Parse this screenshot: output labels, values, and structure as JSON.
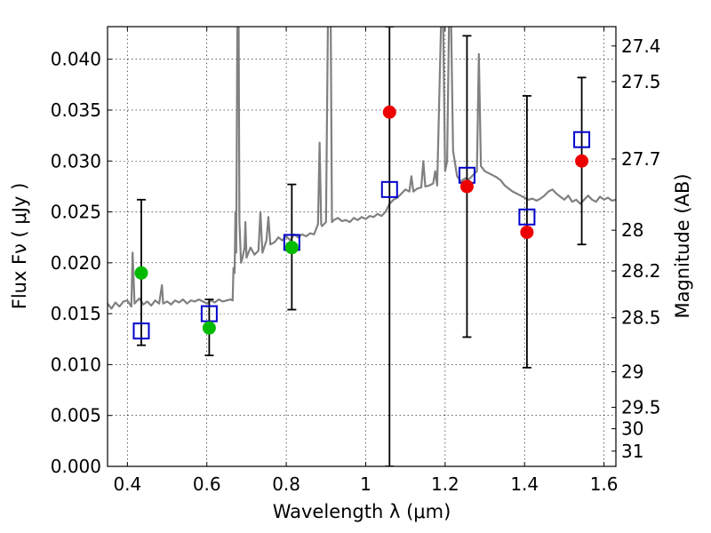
{
  "chart_data": {
    "type": "scatter",
    "xlabel": "Wavelength  λ (μm)",
    "ylabel": "Flux  Fν  ( μJy )",
    "ylabel_right": "Magnitude (AB)",
    "xlim": [
      0.35,
      1.63
    ],
    "ylim": [
      0.0,
      0.0432
    ],
    "grid": true,
    "x_ticks": [
      {
        "value": 0.4,
        "label": "0.4"
      },
      {
        "value": 0.6,
        "label": "0.6"
      },
      {
        "value": 0.8,
        "label": "0.8"
      },
      {
        "value": 1.0,
        "label": "1"
      },
      {
        "value": 1.2,
        "label": "1.2"
      },
      {
        "value": 1.4,
        "label": "1.4"
      },
      {
        "value": 1.6,
        "label": "1.6"
      }
    ],
    "y_ticks": [
      {
        "value": 0.0,
        "label": "0.000"
      },
      {
        "value": 0.005,
        "label": "0.005"
      },
      {
        "value": 0.01,
        "label": "0.010"
      },
      {
        "value": 0.015,
        "label": "0.015"
      },
      {
        "value": 0.02,
        "label": "0.020"
      },
      {
        "value": 0.025,
        "label": "0.025"
      },
      {
        "value": 0.03,
        "label": "0.030"
      },
      {
        "value": 0.035,
        "label": "0.035"
      },
      {
        "value": 0.04,
        "label": "0.040"
      }
    ],
    "y2_ticks": [
      {
        "flux": 0.0413,
        "label": "27.4"
      },
      {
        "flux": 0.0378,
        "label": "27.5"
      },
      {
        "flux": 0.0302,
        "label": "27.7"
      },
      {
        "flux": 0.0232,
        "label": "28"
      },
      {
        "flux": 0.0192,
        "label": "28.2"
      },
      {
        "flux": 0.0146,
        "label": "28.5"
      },
      {
        "flux": 0.0093,
        "label": "29"
      },
      {
        "flux": 0.0058,
        "label": "29.5"
      },
      {
        "flux": 0.0037,
        "label": "30"
      },
      {
        "flux": 0.0015,
        "label": "31"
      }
    ],
    "model_spectrum": {
      "color": "#808080",
      "points": [
        [
          0.35,
          0.016
        ],
        [
          0.36,
          0.0155
        ],
        [
          0.37,
          0.0161
        ],
        [
          0.38,
          0.0157
        ],
        [
          0.39,
          0.0162
        ],
        [
          0.4,
          0.0163
        ],
        [
          0.41,
          0.0157
        ],
        [
          0.413,
          0.021
        ],
        [
          0.418,
          0.016
        ],
        [
          0.43,
          0.0165
        ],
        [
          0.44,
          0.0159
        ],
        [
          0.45,
          0.0162
        ],
        [
          0.46,
          0.0158
        ],
        [
          0.47,
          0.0163
        ],
        [
          0.48,
          0.016
        ],
        [
          0.487,
          0.0178
        ],
        [
          0.49,
          0.016
        ],
        [
          0.5,
          0.0162
        ],
        [
          0.51,
          0.0159
        ],
        [
          0.52,
          0.0163
        ],
        [
          0.53,
          0.0161
        ],
        [
          0.54,
          0.0164
        ],
        [
          0.55,
          0.016
        ],
        [
          0.56,
          0.0163
        ],
        [
          0.57,
          0.0162
        ],
        [
          0.58,
          0.0164
        ],
        [
          0.59,
          0.0162
        ],
        [
          0.6,
          0.016
        ],
        [
          0.61,
          0.0163
        ],
        [
          0.62,
          0.0161
        ],
        [
          0.63,
          0.0164
        ],
        [
          0.64,
          0.0162
        ],
        [
          0.65,
          0.0163
        ],
        [
          0.66,
          0.0164
        ],
        [
          0.665,
          0.0163
        ],
        [
          0.667,
          0.0195
        ],
        [
          0.67,
          0.019
        ],
        [
          0.672,
          0.025
        ],
        [
          0.674,
          0.021
        ],
        [
          0.677,
          0.044
        ],
        [
          0.68,
          0.044
        ],
        [
          0.682,
          0.024
        ],
        [
          0.686,
          0.02
        ],
        [
          0.69,
          0.0205
        ],
        [
          0.695,
          0.0215
        ],
        [
          0.697,
          0.024
        ],
        [
          0.7,
          0.0205
        ],
        [
          0.705,
          0.021
        ],
        [
          0.71,
          0.0215
        ],
        [
          0.72,
          0.0208
        ],
        [
          0.73,
          0.0212
        ],
        [
          0.735,
          0.025
        ],
        [
          0.74,
          0.021
        ],
        [
          0.75,
          0.0222
        ],
        [
          0.755,
          0.0245
        ],
        [
          0.76,
          0.0218
        ],
        [
          0.77,
          0.022
        ],
        [
          0.78,
          0.0225
        ],
        [
          0.79,
          0.0222
        ],
        [
          0.8,
          0.0226
        ],
        [
          0.81,
          0.0222
        ],
        [
          0.82,
          0.0228
        ],
        [
          0.83,
          0.0225
        ],
        [
          0.84,
          0.0228
        ],
        [
          0.85,
          0.0226
        ],
        [
          0.86,
          0.0229
        ],
        [
          0.87,
          0.0228
        ],
        [
          0.88,
          0.0238
        ],
        [
          0.884,
          0.0318
        ],
        [
          0.888,
          0.0238
        ],
        [
          0.89,
          0.0236
        ],
        [
          0.9,
          0.024
        ],
        [
          0.905,
          0.044
        ],
        [
          0.912,
          0.044
        ],
        [
          0.915,
          0.024
        ],
        [
          0.92,
          0.0242
        ],
        [
          0.93,
          0.0244
        ],
        [
          0.94,
          0.0241
        ],
        [
          0.95,
          0.0242
        ],
        [
          0.96,
          0.024
        ],
        [
          0.97,
          0.0244
        ],
        [
          0.98,
          0.0242
        ],
        [
          0.99,
          0.0245
        ],
        [
          1.0,
          0.0243
        ],
        [
          1.01,
          0.0246
        ],
        [
          1.02,
          0.0245
        ],
        [
          1.03,
          0.0248
        ],
        [
          1.04,
          0.0246
        ],
        [
          1.05,
          0.025
        ],
        [
          1.06,
          0.0258
        ],
        [
          1.07,
          0.0262
        ],
        [
          1.08,
          0.0264
        ],
        [
          1.09,
          0.0268
        ],
        [
          1.1,
          0.0272
        ],
        [
          1.11,
          0.027
        ],
        [
          1.115,
          0.0285
        ],
        [
          1.12,
          0.027
        ],
        [
          1.13,
          0.0273
        ],
        [
          1.14,
          0.0274
        ],
        [
          1.145,
          0.03
        ],
        [
          1.15,
          0.0275
        ],
        [
          1.16,
          0.0276
        ],
        [
          1.17,
          0.0278
        ],
        [
          1.175,
          0.029
        ],
        [
          1.18,
          0.0276
        ],
        [
          1.19,
          0.044
        ],
        [
          1.195,
          0.044
        ],
        [
          1.2,
          0.029
        ],
        [
          1.205,
          0.03
        ],
        [
          1.21,
          0.044
        ],
        [
          1.215,
          0.044
        ],
        [
          1.22,
          0.031
        ],
        [
          1.23,
          0.0285
        ],
        [
          1.24,
          0.028
        ],
        [
          1.25,
          0.0283
        ],
        [
          1.26,
          0.0282
        ],
        [
          1.27,
          0.0286
        ],
        [
          1.28,
          0.029
        ],
        [
          1.285,
          0.0405
        ],
        [
          1.29,
          0.0295
        ],
        [
          1.3,
          0.029
        ],
        [
          1.31,
          0.0288
        ],
        [
          1.32,
          0.0286
        ],
        [
          1.33,
          0.0284
        ],
        [
          1.34,
          0.0281
        ],
        [
          1.35,
          0.0276
        ],
        [
          1.36,
          0.0273
        ],
        [
          1.37,
          0.027
        ],
        [
          1.38,
          0.0268
        ],
        [
          1.39,
          0.0266
        ],
        [
          1.4,
          0.0264
        ],
        [
          1.41,
          0.0262
        ],
        [
          1.42,
          0.0263
        ],
        [
          1.43,
          0.0261
        ],
        [
          1.44,
          0.0263
        ],
        [
          1.45,
          0.0266
        ],
        [
          1.46,
          0.027
        ],
        [
          1.47,
          0.0272
        ],
        [
          1.48,
          0.0268
        ],
        [
          1.49,
          0.0265
        ],
        [
          1.5,
          0.0262
        ],
        [
          1.51,
          0.0266
        ],
        [
          1.52,
          0.026
        ],
        [
          1.53,
          0.0262
        ],
        [
          1.54,
          0.0258
        ],
        [
          1.55,
          0.0262
        ],
        [
          1.56,
          0.0266
        ],
        [
          1.57,
          0.0262
        ],
        [
          1.58,
          0.026
        ],
        [
          1.59,
          0.0265
        ],
        [
          1.6,
          0.0262
        ],
        [
          1.61,
          0.0264
        ],
        [
          1.62,
          0.0261
        ],
        [
          1.63,
          0.0262
        ]
      ]
    },
    "model_photometry": {
      "color": "#0000cc",
      "marker": "open-square",
      "points": [
        {
          "x": 0.435,
          "y": 0.0133
        },
        {
          "x": 0.606,
          "y": 0.015
        },
        {
          "x": 0.814,
          "y": 0.022
        },
        {
          "x": 1.06,
          "y": 0.0272
        },
        {
          "x": 1.255,
          "y": 0.0286
        },
        {
          "x": 1.406,
          "y": 0.0245
        },
        {
          "x": 1.544,
          "y": 0.0321
        }
      ]
    },
    "observed_green": {
      "color": "#00bb00",
      "marker": "filled-circle",
      "points": [
        {
          "x": 0.435,
          "y": 0.019,
          "yerr_low": 0.0119,
          "yerr_high": 0.0262
        },
        {
          "x": 0.606,
          "y": 0.0136,
          "yerr_low": 0.0109,
          "yerr_high": 0.0164
        },
        {
          "x": 0.814,
          "y": 0.0215,
          "yerr_low": 0.0154,
          "yerr_high": 0.0277
        }
      ]
    },
    "observed_red": {
      "color": "#ee0000",
      "marker": "filled-circle",
      "points": [
        {
          "x": 1.06,
          "y": 0.0348,
          "yerr_low": 0.0,
          "yerr_high": 0.0432
        },
        {
          "x": 1.255,
          "y": 0.0275,
          "yerr_low": 0.0127,
          "yerr_high": 0.0423
        },
        {
          "x": 1.406,
          "y": 0.023,
          "yerr_low": 0.0097,
          "yerr_high": 0.0364
        },
        {
          "x": 1.544,
          "y": 0.03,
          "yerr_low": 0.0218,
          "yerr_high": 0.0382
        }
      ]
    }
  }
}
